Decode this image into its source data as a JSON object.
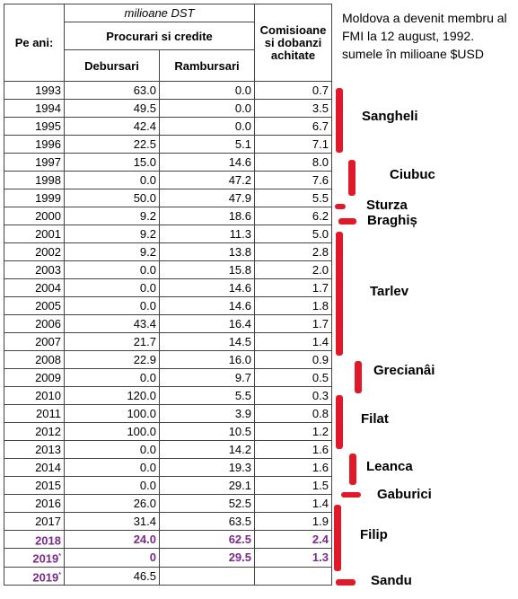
{
  "header": {
    "units": "milioane DST",
    "per_year": "Pe ani:",
    "group": "Procurari si credite",
    "col_disb": "Debursari",
    "col_repay": "Rambursari",
    "col_fees": "Comisioane si dobanzi achitate"
  },
  "note": "Moldova a devenit membru al FMI la 12 august, 1992. sumele în milioane $USD",
  "rows": [
    {
      "year": "1993",
      "disb": "63.0",
      "repay": "0.0",
      "fees": "0.7"
    },
    {
      "year": "1994",
      "disb": "49.5",
      "repay": "0.0",
      "fees": "3.5"
    },
    {
      "year": "1995",
      "disb": "42.4",
      "repay": "0.0",
      "fees": "6.7"
    },
    {
      "year": "1996",
      "disb": "22.5",
      "repay": "5.1",
      "fees": "7.1"
    },
    {
      "year": "1997",
      "disb": "15.0",
      "repay": "14.6",
      "fees": "8.0"
    },
    {
      "year": "1998",
      "disb": "0.0",
      "repay": "47.2",
      "fees": "7.6"
    },
    {
      "year": "1999",
      "disb": "50.0",
      "repay": "47.9",
      "fees": "5.5"
    },
    {
      "year": "2000",
      "disb": "9.2",
      "repay": "18.6",
      "fees": "6.2"
    },
    {
      "year": "2001",
      "disb": "9.2",
      "repay": "11.3",
      "fees": "5.0"
    },
    {
      "year": "2002",
      "disb": "9.2",
      "repay": "13.8",
      "fees": "2.8"
    },
    {
      "year": "2003",
      "disb": "0.0",
      "repay": "15.8",
      "fees": "2.0"
    },
    {
      "year": "2004",
      "disb": "0.0",
      "repay": "14.6",
      "fees": "1.7"
    },
    {
      "year": "2005",
      "disb": "0.0",
      "repay": "14.6",
      "fees": "1.8"
    },
    {
      "year": "2006",
      "disb": "43.4",
      "repay": "16.4",
      "fees": "1.7"
    },
    {
      "year": "2007",
      "disb": "21.7",
      "repay": "14.5",
      "fees": "1.4"
    },
    {
      "year": "2008",
      "disb": "22.9",
      "repay": "16.0",
      "fees": "0.9"
    },
    {
      "year": "2009",
      "disb": "0.0",
      "repay": "9.7",
      "fees": "0.5"
    },
    {
      "year": "2010",
      "disb": "120.0",
      "repay": "5.5",
      "fees": "0.3"
    },
    {
      "year": "2011",
      "disb": "100.0",
      "repay": "3.9",
      "fees": "0.8"
    },
    {
      "year": "2012",
      "disb": "100.0",
      "repay": "10.5",
      "fees": "1.2"
    },
    {
      "year": "2013",
      "disb": "0.0",
      "repay": "14.2",
      "fees": "1.6"
    },
    {
      "year": "2014",
      "disb": "0.0",
      "repay": "19.3",
      "fees": "1.6"
    },
    {
      "year": "2015",
      "disb": "0.0",
      "repay": "29.1",
      "fees": "1.5"
    },
    {
      "year": "2016",
      "disb": "26.0",
      "repay": "52.5",
      "fees": "1.4"
    },
    {
      "year": "2017",
      "disb": "31.4",
      "repay": "63.5",
      "fees": "1.9"
    }
  ],
  "rows_highlight": [
    {
      "year": "2018",
      "disb": "24.0",
      "repay": "62.5",
      "fees": "2.4",
      "sup": ""
    },
    {
      "year": "2019",
      "disb": "0",
      "repay": "29.5",
      "fees": "1.3",
      "sup": "*"
    },
    {
      "year": "2019",
      "disb": "46.5",
      "repay": "",
      "fees": "",
      "sup": "*"
    }
  ],
  "prime_ministers": [
    "Sangheli",
    "Ciubuc",
    "Sturza",
    "Braghiș",
    "Tarlev",
    "Grecianâi",
    "Filat",
    "Leanca",
    "Gaburici",
    "Filip",
    "Sandu"
  ],
  "accent_color": "#e0192a",
  "highlight_color": "#7a2a8a"
}
